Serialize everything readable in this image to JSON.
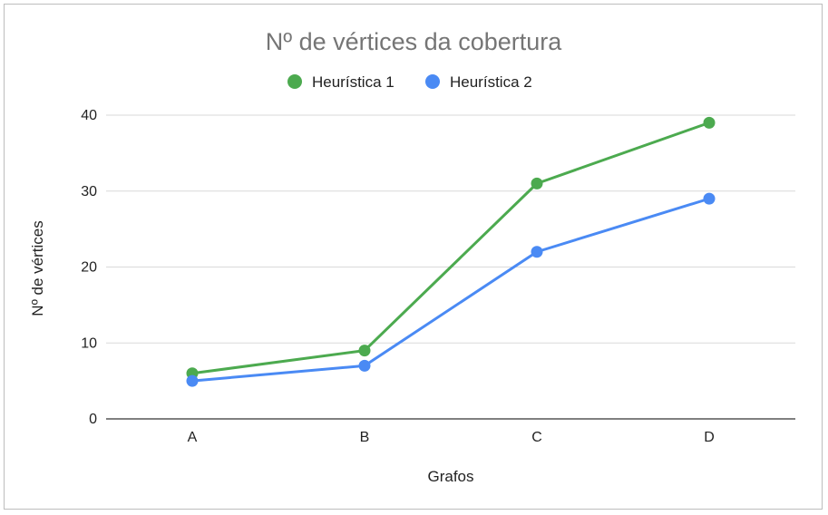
{
  "chart_data": {
    "type": "line",
    "title": "Nº de vértices da cobertura",
    "xlabel": "Grafos",
    "ylabel": "Nº de vértices",
    "categories": [
      "A",
      "B",
      "C",
      "D"
    ],
    "ylim": [
      0,
      40
    ],
    "yticks": [
      0,
      10,
      20,
      30,
      40
    ],
    "grid": true,
    "legend_position": "top",
    "series": [
      {
        "name": "Heurística 1",
        "color": "#4caa4f",
        "values": [
          6,
          9,
          31,
          39
        ]
      },
      {
        "name": "Heurística 2",
        "color": "#4a8af4",
        "values": [
          5,
          7,
          22,
          29
        ]
      }
    ]
  }
}
